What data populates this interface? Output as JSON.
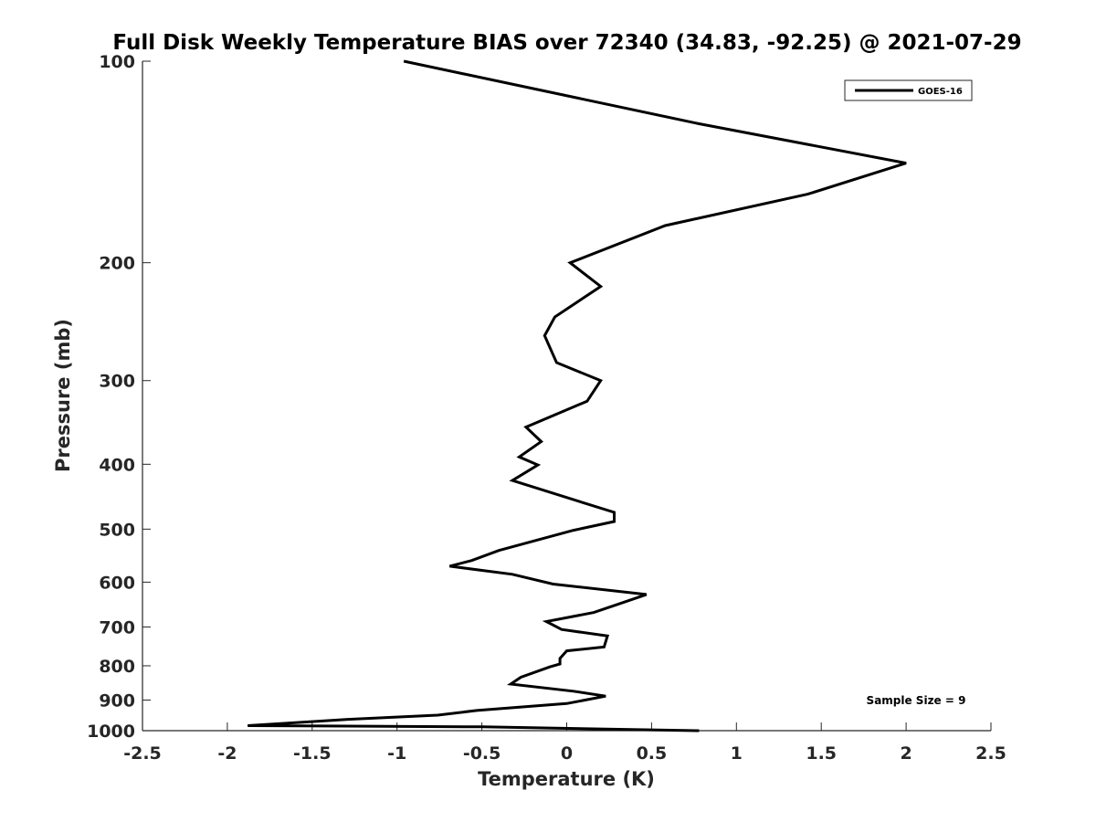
{
  "chart_data": {
    "type": "line",
    "title": "Full Disk Weekly Temperature BIAS over 72340 (34.83, -92.25) @ 2021-07-29",
    "xlabel": "Temperature (K)",
    "ylabel": "Pressure (mb)",
    "xlim": [
      -2.5,
      2.5
    ],
    "ylim": [
      100,
      1000
    ],
    "y_scale": "log",
    "y_reversed": true,
    "x_ticks": [
      "-2.5",
      "-2",
      "-1.5",
      "-1",
      "-0.5",
      "0",
      "0.5",
      "1",
      "1.5",
      "2",
      "2.5"
    ],
    "y_ticks": [
      "100",
      "200",
      "300",
      "400",
      "500",
      "600",
      "700",
      "800",
      "900",
      "1000"
    ],
    "grid": false,
    "legend_position": "top-right",
    "series": [
      {
        "name": "GOES-16",
        "color": "#000000",
        "points": [
          [
            -0.96,
            100
          ],
          [
            0.78,
            124
          ],
          [
            2.0,
            142
          ],
          [
            1.42,
            158
          ],
          [
            0.58,
            176
          ],
          [
            0.02,
            200
          ],
          [
            0.2,
            217
          ],
          [
            -0.07,
            241
          ],
          [
            -0.13,
            257
          ],
          [
            -0.06,
            282
          ],
          [
            0.2,
            300
          ],
          [
            0.12,
            322
          ],
          [
            -0.24,
            352
          ],
          [
            -0.15,
            370
          ],
          [
            -0.28,
            390
          ],
          [
            -0.17,
            401
          ],
          [
            -0.32,
            423
          ],
          [
            0.28,
            472
          ],
          [
            0.28,
            487
          ],
          [
            0.04,
            502
          ],
          [
            -0.4,
            538
          ],
          [
            -0.56,
            557
          ],
          [
            -0.69,
            568
          ],
          [
            -0.32,
            584
          ],
          [
            -0.08,
            604
          ],
          [
            0.47,
            626
          ],
          [
            0.32,
            645
          ],
          [
            0.16,
            666
          ],
          [
            -0.12,
            687
          ],
          [
            -0.03,
            706
          ],
          [
            0.24,
            722
          ],
          [
            0.22,
            750
          ],
          [
            0.0,
            760
          ],
          [
            -0.04,
            780
          ],
          [
            -0.04,
            795
          ],
          [
            -0.1,
            803
          ],
          [
            -0.27,
            832
          ],
          [
            -0.33,
            852
          ],
          [
            0.04,
            873
          ],
          [
            0.23,
            888
          ],
          [
            0.0,
            911
          ],
          [
            -0.53,
            933
          ],
          [
            -0.76,
            948
          ],
          [
            -1.3,
            962
          ],
          [
            -1.88,
            983
          ],
          [
            -0.5,
            987
          ],
          [
            0.78,
            1000
          ]
        ]
      }
    ],
    "annotations": [
      "Sample Size = 9"
    ]
  }
}
